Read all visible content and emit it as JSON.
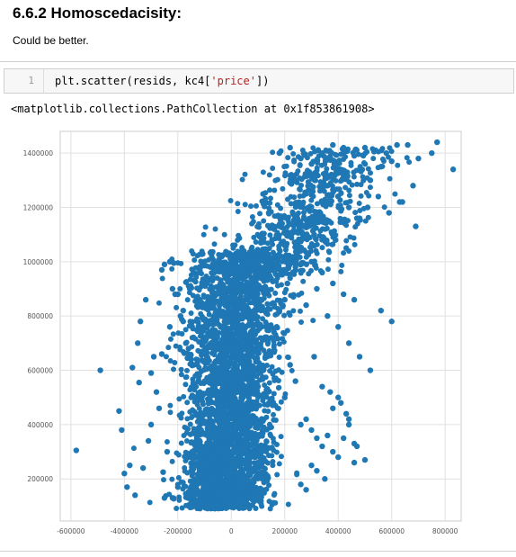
{
  "section": {
    "title": "6.6.2  Homoscedacisity:",
    "note": "Could be better."
  },
  "code_cell": {
    "prompt": "1",
    "code_prefix": "plt.scatter(resids, kc4[",
    "code_string": "'price'",
    "code_suffix": "])"
  },
  "output": {
    "text": "<matplotlib.collections.PathCollection at 0x1f853861908>"
  },
  "colors": {
    "marker": "#1f77b4",
    "grid": "#e0e0e0",
    "axis": "#cccccc"
  },
  "chart_data": {
    "type": "scatter",
    "title": "",
    "xlabel": "",
    "ylabel": "",
    "grid": true,
    "xlim": [
      -640000,
      860000
    ],
    "ylim": [
      45000,
      1480000
    ],
    "x_ticks": [
      -600000,
      -400000,
      -200000,
      0,
      200000,
      400000,
      600000,
      800000
    ],
    "y_ticks": [
      200000,
      400000,
      600000,
      800000,
      1000000,
      1200000,
      1400000
    ],
    "marker_color": "#1f77b4",
    "series": [
      {
        "x": [
          -50000,
          -30000,
          -10000,
          10000,
          30000,
          50000,
          70000,
          -70000,
          -90000,
          90000,
          110000,
          -110000,
          -130000,
          -20000,
          0,
          20000,
          40000,
          60000,
          -40000,
          -60000,
          -80000,
          80000,
          100000,
          -100000,
          -120000,
          120000,
          -140000,
          -150000,
          140000,
          -160000,
          -170000,
          150000,
          160000,
          170000,
          -180000,
          -190000,
          180000,
          190000,
          200000,
          -200000,
          -220000,
          210000,
          220000,
          230000,
          240000,
          -230000,
          -250000,
          -260000,
          250000,
          260000
        ],
        "y": [
          100000,
          120000,
          140000,
          160000,
          180000,
          200000,
          220000,
          240000,
          260000,
          280000,
          300000,
          320000,
          340000,
          360000,
          380000,
          400000,
          420000,
          440000,
          460000,
          480000,
          500000,
          520000,
          540000,
          560000,
          580000,
          600000,
          620000,
          640000,
          660000,
          680000,
          700000,
          720000,
          740000,
          760000,
          780000,
          800000,
          820000,
          840000,
          860000,
          880000,
          900000,
          920000,
          940000,
          960000,
          980000,
          1000000,
          990000,
          970000,
          1020000,
          1040000
        ]
      },
      {
        "x": [
          -580000,
          -490000,
          -420000,
          -400000,
          -380000,
          -360000,
          -340000,
          -320000,
          -300000,
          -280000,
          -260000,
          -240000,
          -220000,
          -200000,
          -180000,
          -300000,
          -350000,
          -410000,
          -370000,
          -330000,
          -270000,
          -250000,
          -230000,
          -210000,
          -310000,
          -290000,
          -390000,
          -345000,
          -255000,
          -215000
        ],
        "y": [
          305000,
          600000,
          450000,
          220000,
          250000,
          140000,
          780000,
          860000,
          400000,
          520000,
          660000,
          300000,
          130000,
          170000,
          820000,
          590000,
          700000,
          380000,
          610000,
          240000,
          460000,
          130000,
          760000,
          880000,
          340000,
          650000,
          170000,
          555000,
          225000,
          995000
        ]
      },
      {
        "x": [
          180000,
          220000,
          260000,
          300000,
          340000,
          380000,
          420000,
          460000,
          500000,
          540000,
          580000,
          620000,
          660000,
          700000,
          750000,
          770000,
          830000,
          240000,
          280000,
          320000,
          360000,
          400000,
          440000,
          480000,
          520000,
          560000,
          600000,
          640000,
          680000,
          230000,
          270000,
          310000,
          350000,
          390000,
          430000,
          470000,
          510000,
          550000,
          590000,
          630000,
          690000,
          300000,
          340000,
          380000,
          420000,
          460000,
          400000,
          360000,
          440000,
          480000,
          520000,
          560000,
          600000,
          320000,
          280000,
          240000,
          200000,
          160000,
          140000,
          120000
        ],
        "y": [
          1400000,
          1420000,
          1380000,
          1360000,
          1400000,
          1430000,
          1420000,
          1390000,
          1420000,
          1410000,
          1400000,
          1430000,
          1430000,
          1380000,
          1400000,
          1440000,
          1340000,
          1300000,
          1250000,
          1320000,
          1280000,
          1240000,
          1200000,
          1160000,
          1300000,
          1350000,
          1370000,
          1220000,
          1280000,
          1180000,
          1130000,
          1100000,
          1150000,
          1080000,
          1050000,
          1160000,
          1200000,
          1240000,
          1180000,
          1220000,
          1130000,
          1000000,
          960000,
          920000,
          880000,
          860000,
          760000,
          800000,
          700000,
          650000,
          600000,
          820000,
          780000,
          900000,
          840000,
          1020000,
          1060000,
          1120000,
          1180000,
          1250000
        ]
      },
      {
        "x": [
          200000,
          240000,
          260000,
          280000,
          300000,
          320000,
          340000,
          360000,
          380000,
          400000,
          420000,
          440000,
          460000,
          300000,
          320000,
          350000,
          380000,
          410000,
          430000,
          470000,
          500000,
          260000,
          280000,
          310000,
          340000,
          370000,
          400000,
          440000,
          460000,
          220000
        ],
        "y": [
          500000,
          560000,
          400000,
          420000,
          380000,
          350000,
          320000,
          360000,
          300000,
          280000,
          350000,
          420000,
          330000,
          250000,
          230000,
          200000,
          460000,
          480000,
          440000,
          320000,
          270000,
          180000,
          160000,
          650000,
          540000,
          520000,
          500000,
          400000,
          260000,
          620000
        ]
      }
    ]
  }
}
